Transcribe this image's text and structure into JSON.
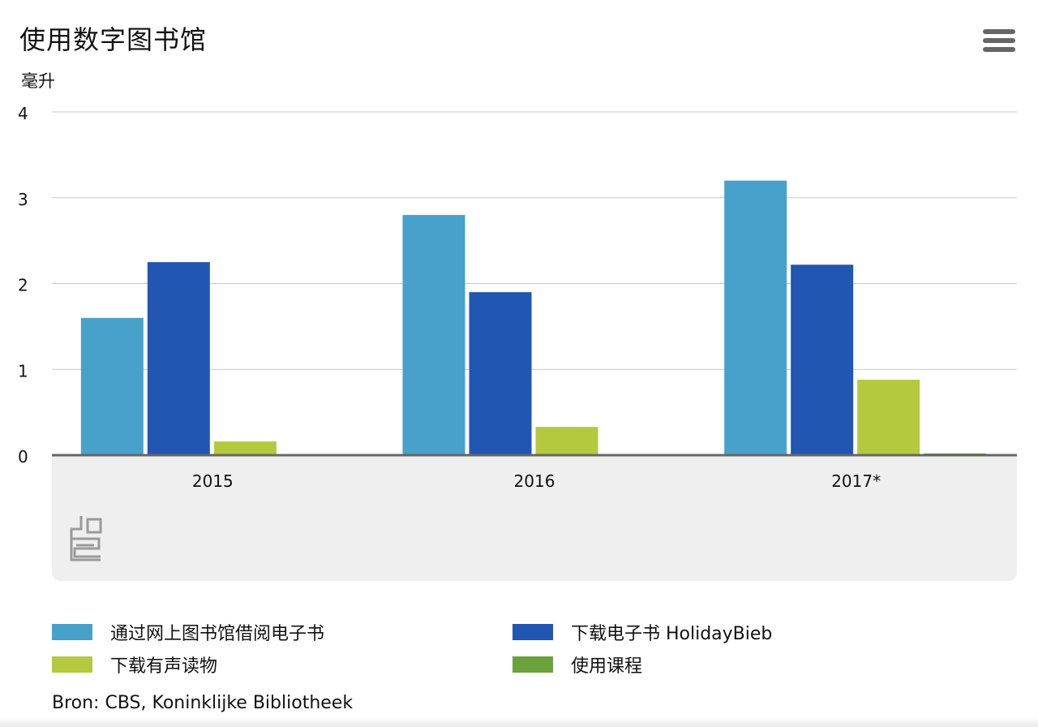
{
  "header": {
    "title": "使用数字图书馆",
    "unit": "毫升",
    "menu_icon": "hamburger-menu-icon"
  },
  "chart_data": {
    "type": "bar",
    "title": "使用数字图书馆",
    "ylabel": "毫升",
    "xlabel": "",
    "categories": [
      "2015",
      "2016",
      "2017*"
    ],
    "ylim": [
      0,
      4
    ],
    "yticks": [
      0,
      1,
      2,
      3,
      4
    ],
    "grid": true,
    "legend_position": "bottom",
    "series": [
      {
        "name": "通过网上图书馆借阅电子书",
        "color": "#48a1cb",
        "values": [
          1.6,
          2.8,
          3.2
        ]
      },
      {
        "name": "下载电子书 HolidayBieb",
        "color": "#2256b3",
        "values": [
          2.25,
          1.9,
          2.22
        ]
      },
      {
        "name": "下载有声读物",
        "color": "#b5c93f",
        "values": [
          0.16,
          0.33,
          0.88
        ]
      },
      {
        "name": "使用课程",
        "color": "#6aa23c",
        "values": [
          0,
          0,
          0.02
        ]
      }
    ]
  },
  "logo": {
    "icon": "cbs-logo-icon"
  },
  "source": "Bron: CBS, Koninklijke Bibliotheek"
}
